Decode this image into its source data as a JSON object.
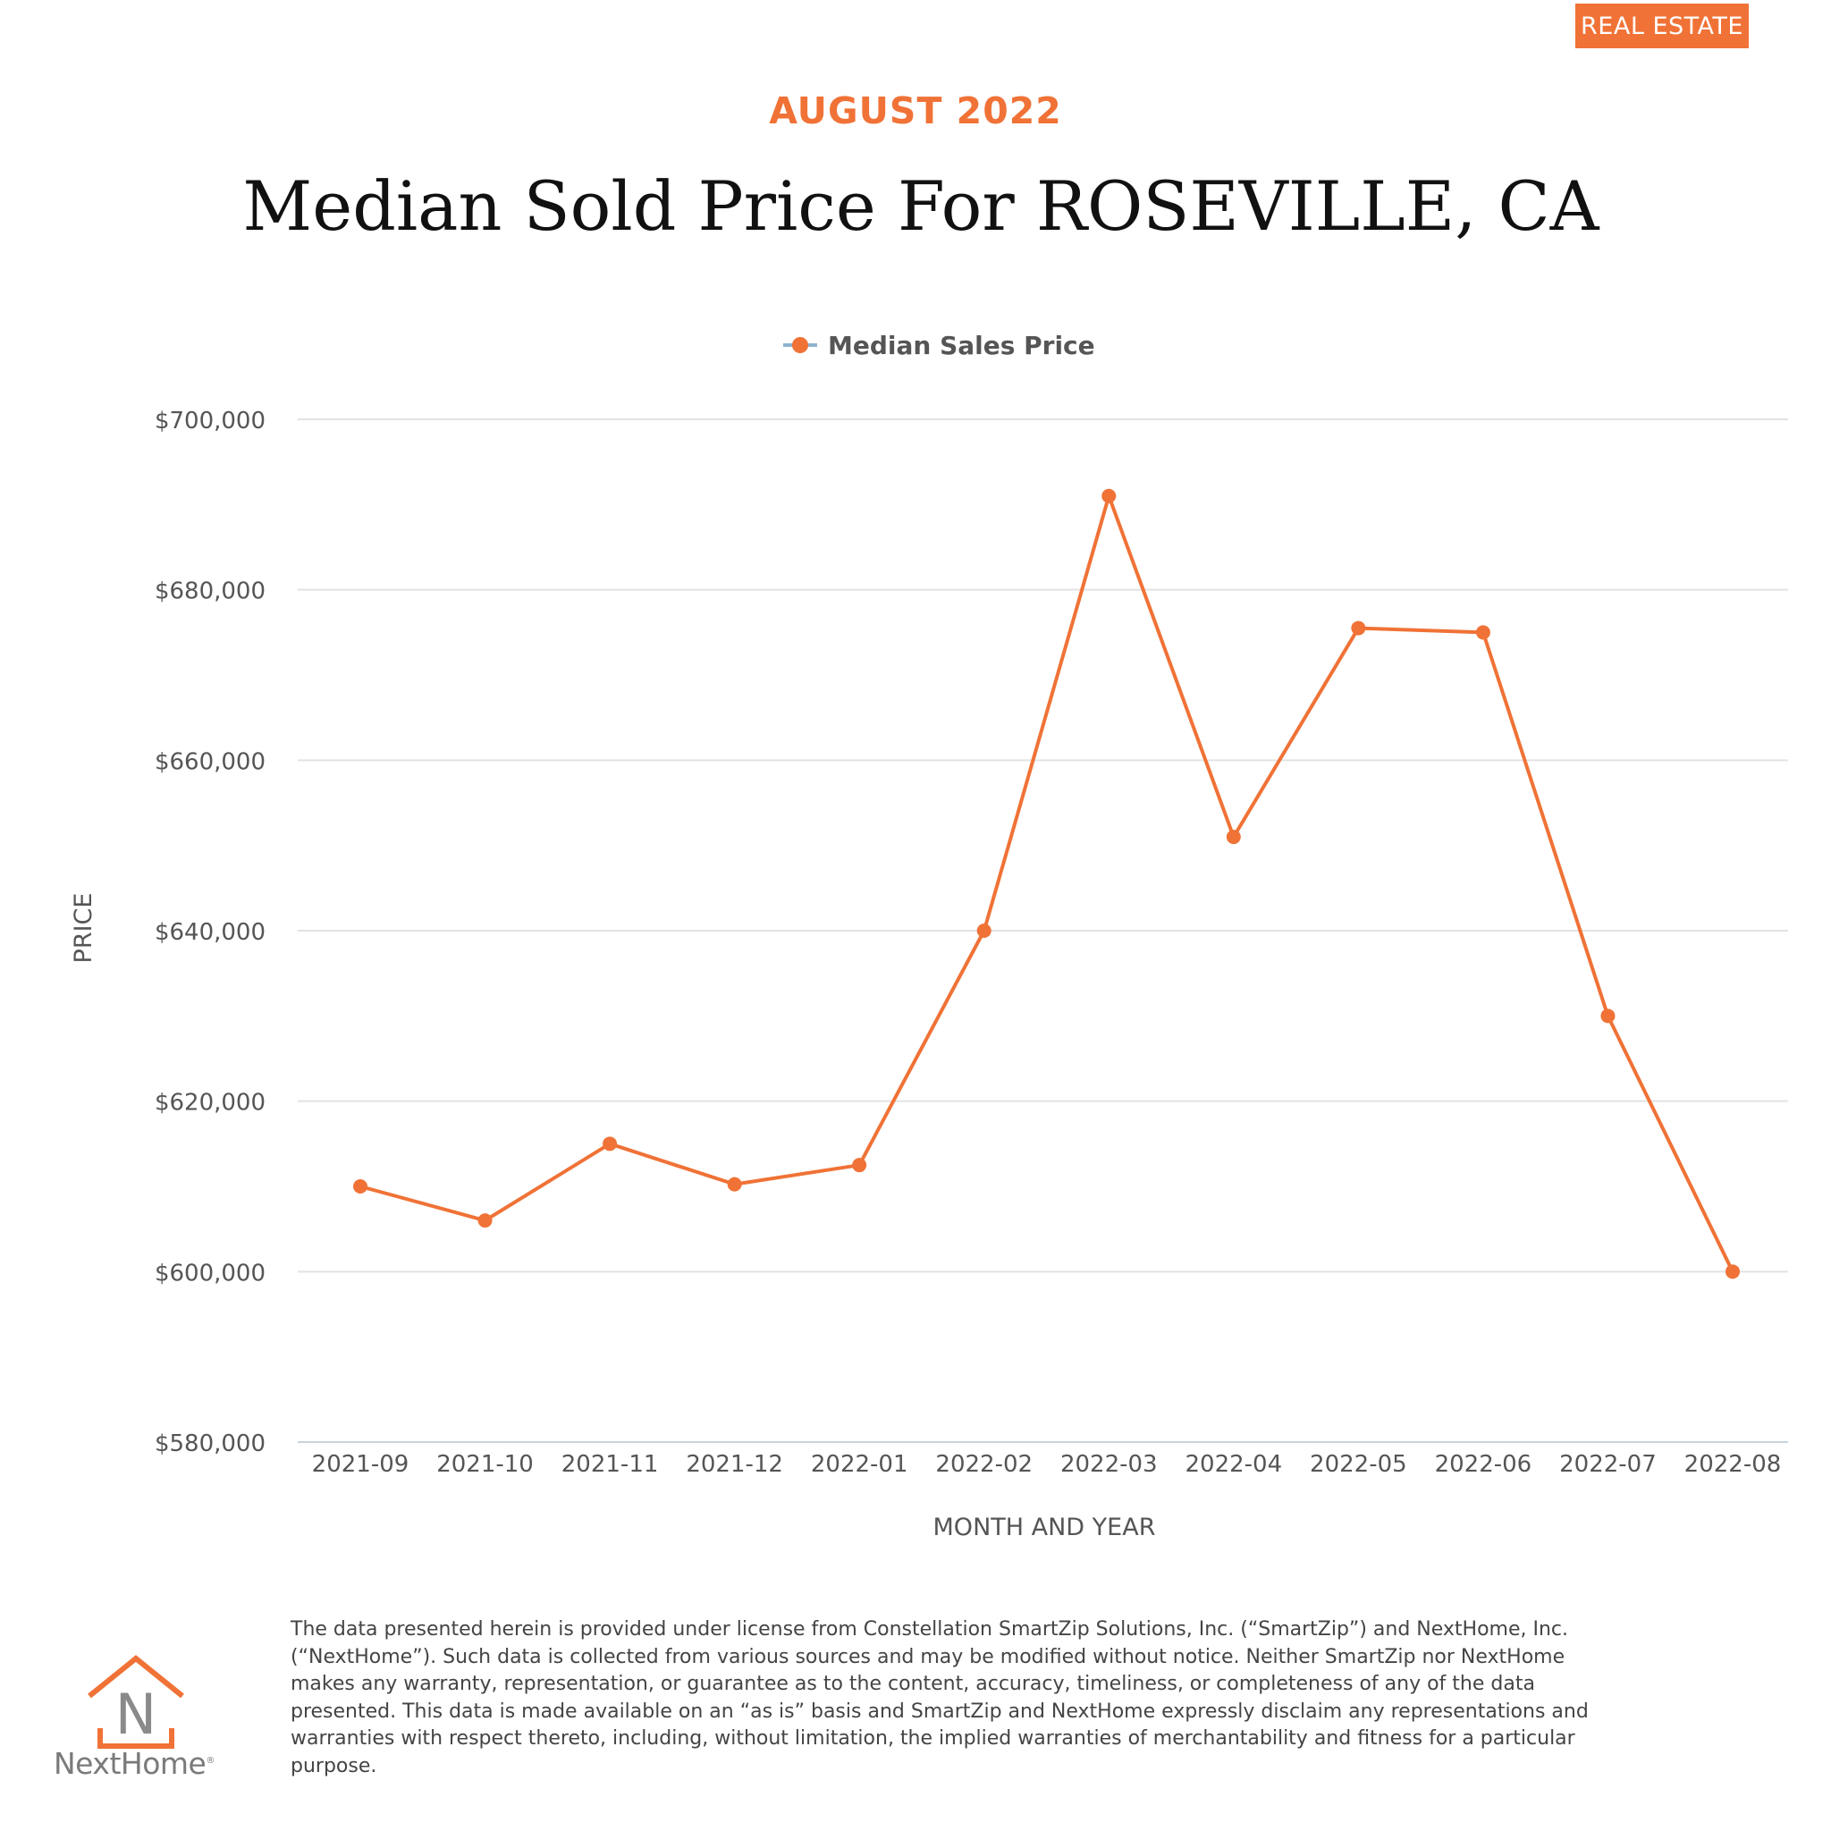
{
  "badge": "REAL ESTATE",
  "header": {
    "month": "AUGUST 2022",
    "title": "Median Sold Price For ROSEVILLE, CA"
  },
  "brand": {
    "name": "NextHome",
    "letter": "N"
  },
  "colors": {
    "accent": "#f07236",
    "grid": "#e3e3e3",
    "axis_text": "#555555"
  },
  "disclaimer": "The data presented herein is provided under license from Constellation SmartZip Solutions, Inc. (“SmartZip”) and NextHome, Inc. (“NextHome”). Such data is collected from various sources and may be modified without notice. Neither SmartZip nor NextHome makes any warranty, representation, or guarantee as to the content, accuracy, timeliness, or completeness of any of the data presented. This data is made available on an “as is” basis and SmartZip and NextHome expressly disclaim any representations and warranties with respect thereto, including, without limitation, the implied warranties of merchantability and fitness for a particular purpose.",
  "chart_data": {
    "type": "line",
    "categories": [
      "2021-09",
      "2021-10",
      "2021-11",
      "2021-12",
      "2022-01",
      "2022-02",
      "2022-03",
      "2022-04",
      "2022-05",
      "2022-06",
      "2022-07",
      "2022-08"
    ],
    "series": [
      {
        "name": "Median Sales Price",
        "values": [
          610000,
          606000,
          615000,
          610250,
          612500,
          640000,
          691000,
          651000,
          675500,
          675000,
          630000,
          600000
        ]
      }
    ],
    "xlabel": "MONTH AND YEAR",
    "ylabel": "PRICE",
    "ylim": [
      580000,
      700000
    ],
    "yticks": [
      580000,
      600000,
      620000,
      640000,
      660000,
      680000,
      700000
    ],
    "ytick_labels": [
      "$580,000",
      "$600,000",
      "$620,000",
      "$640,000",
      "$660,000",
      "$680,000",
      "$700,000"
    ],
    "grid": true,
    "legend": "top-center"
  }
}
